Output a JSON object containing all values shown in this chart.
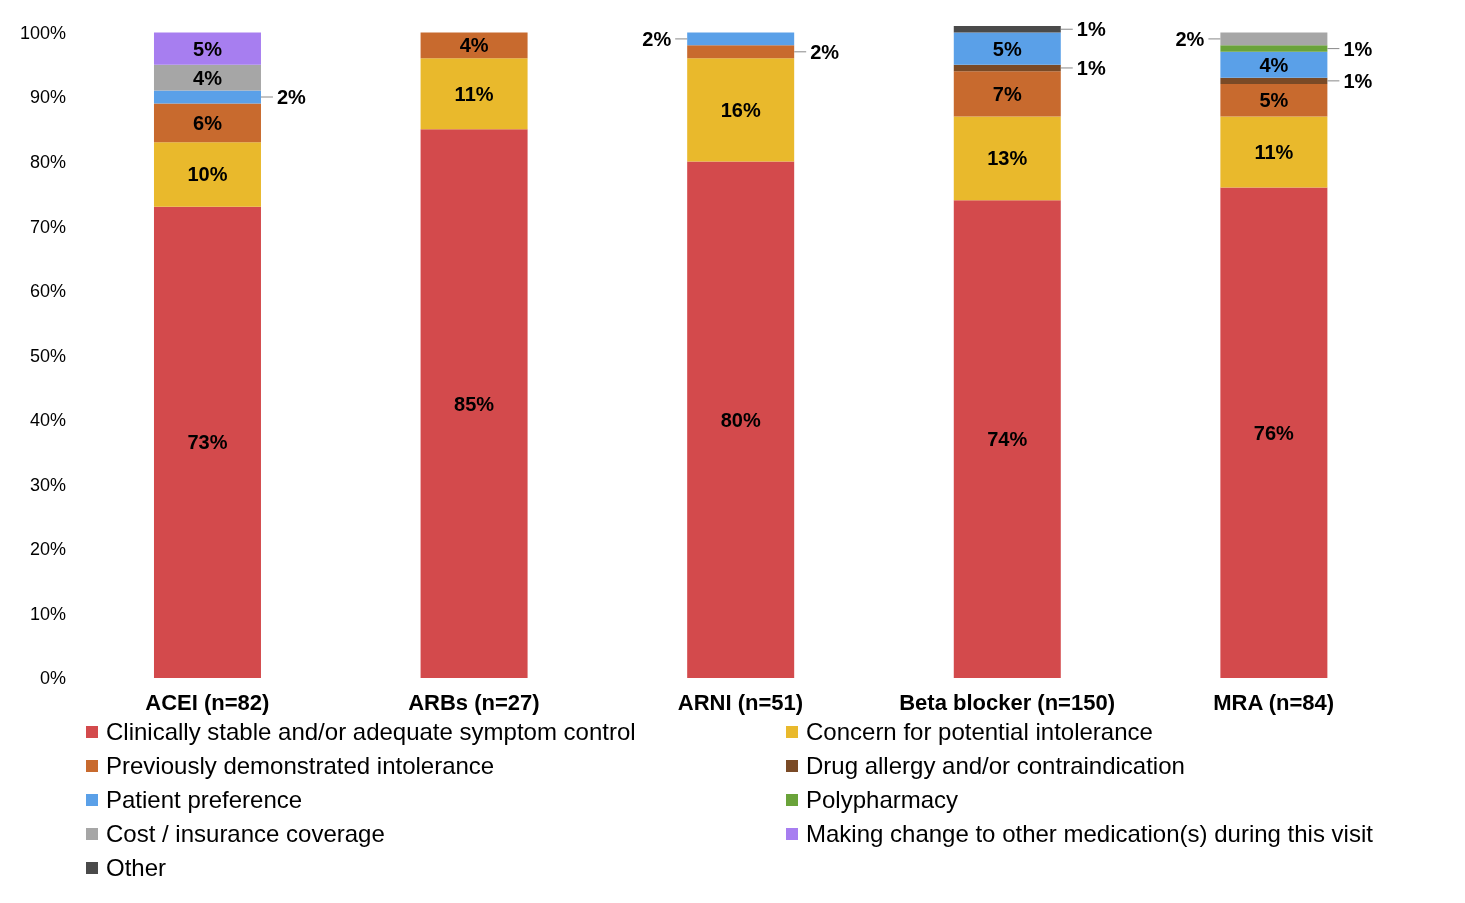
{
  "chart_data": {
    "type": "bar",
    "stacked": true,
    "legend": "bottom",
    "grid": false,
    "categories": [
      "ACEI (n=82)",
      "ARBs (n=27)",
      "ARNI (n=51)",
      "Beta blocker (n=150)",
      "MRA (n=84)"
    ],
    "ylim": [
      0,
      101
    ],
    "yticks": [
      {
        "value": 0,
        "label": "0%"
      },
      {
        "value": 10,
        "label": "10%"
      },
      {
        "value": 20,
        "label": "20%"
      },
      {
        "value": 30,
        "label": "30%"
      },
      {
        "value": 40,
        "label": "40%"
      },
      {
        "value": 50,
        "label": "50%"
      },
      {
        "value": 60,
        "label": "60%"
      },
      {
        "value": 70,
        "label": "70%"
      },
      {
        "value": 80,
        "label": "80%"
      },
      {
        "value": 90,
        "label": "90%"
      },
      {
        "value": 100,
        "label": "100%"
      }
    ],
    "series": [
      {
        "name": "Clinically stable and/or adequate symptom control",
        "color": "#d34a4c",
        "values": [
          73,
          85,
          80,
          74,
          76
        ],
        "value_labels": [
          "73%",
          "85%",
          "80%",
          "74%",
          "76%"
        ]
      },
      {
        "name": "Concern for potential intolerance",
        "color": "#e9b92c",
        "values": [
          10,
          11,
          16,
          13,
          11
        ],
        "value_labels": [
          "10%",
          "11%",
          "16%",
          "13%",
          "11%"
        ]
      },
      {
        "name": "Previously demonstrated intolerance",
        "color": "#c86a2e",
        "values": [
          6,
          4,
          2,
          7,
          5
        ],
        "value_labels": [
          "6%",
          "4%",
          "2%",
          "7%",
          "5%"
        ]
      },
      {
        "name": "Drug allergy and/or contraindication",
        "color": "#7a4a26",
        "values": [
          null,
          null,
          null,
          1,
          1
        ],
        "value_labels": [
          null,
          null,
          null,
          "1%",
          "1%"
        ]
      },
      {
        "name": "Patient preference",
        "color": "#5aa0e8",
        "values": [
          2,
          null,
          2,
          5,
          4
        ],
        "value_labels": [
          "2%",
          null,
          "2%",
          "5%",
          "4%"
        ]
      },
      {
        "name": "Polypharmacy",
        "color": "#6aa33a",
        "values": [
          null,
          null,
          null,
          null,
          1
        ],
        "value_labels": [
          null,
          null,
          null,
          null,
          "1%"
        ]
      },
      {
        "name": "Cost / insurance coverage",
        "color": "#a6a6a6",
        "values": [
          4,
          null,
          null,
          null,
          2
        ],
        "value_labels": [
          "4%",
          null,
          null,
          null,
          "2%"
        ]
      },
      {
        "name": "Making change to other medication(s) during this visit",
        "color": "#a77ef0",
        "values": [
          5,
          null,
          null,
          null,
          null
        ],
        "value_labels": [
          "5%",
          null,
          null,
          null,
          null
        ]
      },
      {
        "name": "Other",
        "color": "#4a4a4a",
        "values": [
          null,
          null,
          null,
          1,
          null
        ],
        "value_labels": [
          null,
          null,
          null,
          "1%",
          null
        ]
      }
    ]
  }
}
